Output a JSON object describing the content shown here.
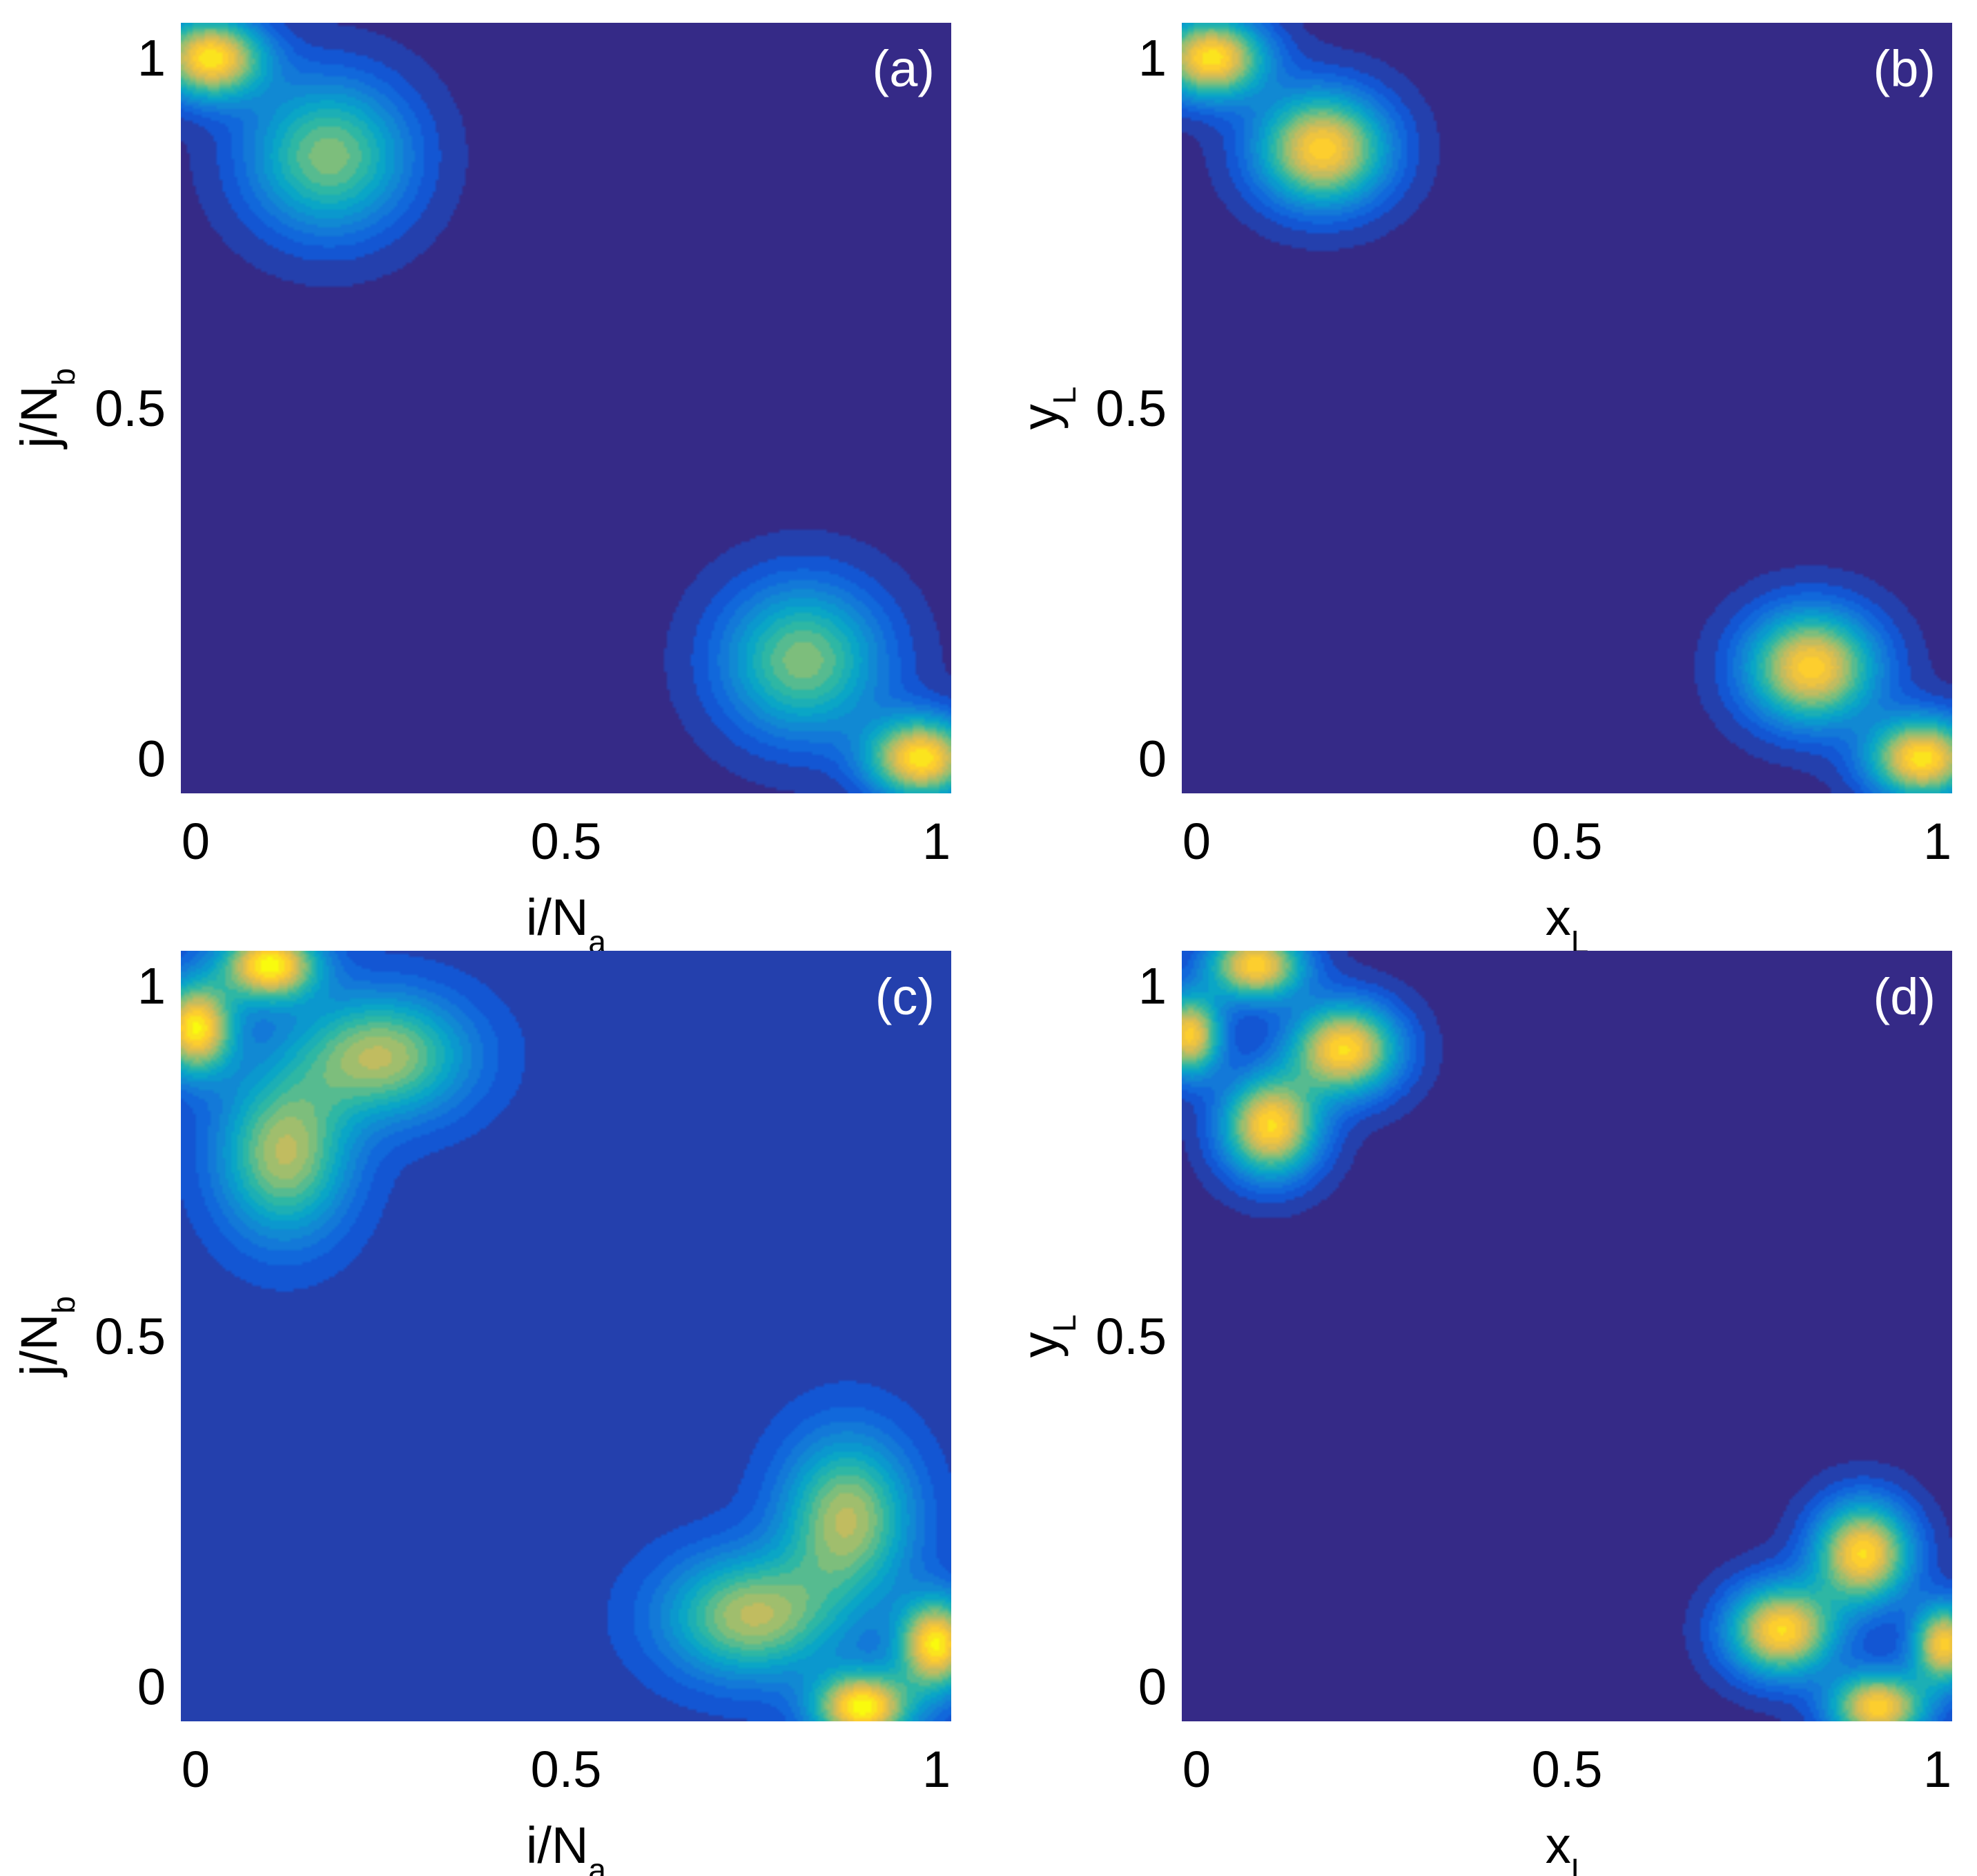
{
  "colors": {
    "background": "#2f2a7c",
    "colormap": [
      "#352a87",
      "#0f5cdd",
      "#1481d6",
      "#06a4ca",
      "#2eb7a4",
      "#87bf77",
      "#d1bb59",
      "#fec832",
      "#f9fb0e"
    ]
  },
  "chart_data": [
    {
      "type": "heatmap",
      "panel_label": "(a)",
      "xlabel": {
        "base": "i/N",
        "sub": "a"
      },
      "ylabel": {
        "base": "j/N",
        "sub": "b"
      },
      "xlim": [
        -0.02,
        1.02
      ],
      "ylim": [
        -0.05,
        1.05
      ],
      "xticks": [
        0,
        0.5,
        1
      ],
      "xtick_labels": [
        "0",
        "0.5",
        "1"
      ],
      "yticks": [
        0,
        0.5,
        1
      ],
      "ytick_labels": [
        "0",
        "0.5",
        "1"
      ],
      "grid": false,
      "base_level": 0.0,
      "lobes": [
        {
          "x": 0.02,
          "y": 1.0,
          "sx": 0.05,
          "sy": 0.04,
          "amp": 0.95
        },
        {
          "x": 0.18,
          "y": 0.86,
          "sx": 0.075,
          "sy": 0.075,
          "amp": 0.62
        },
        {
          "x": 0.98,
          "y": 0.0,
          "sx": 0.05,
          "sy": 0.04,
          "amp": 0.95
        },
        {
          "x": 0.82,
          "y": 0.14,
          "sx": 0.075,
          "sy": 0.075,
          "amp": 0.62
        }
      ]
    },
    {
      "type": "heatmap",
      "panel_label": "(b)",
      "xlabel": {
        "base": "x",
        "sub": "L"
      },
      "ylabel": {
        "base": "y",
        "sub": "L"
      },
      "xlim": [
        -0.02,
        1.02
      ],
      "ylim": [
        -0.05,
        1.05
      ],
      "xticks": [
        0,
        0.5,
        1
      ],
      "xtick_labels": [
        "0",
        "0.5",
        "1"
      ],
      "yticks": [
        0,
        0.5,
        1
      ],
      "ytick_labels": [
        "0",
        "0.5",
        "1"
      ],
      "grid": false,
      "base_level": 0.0,
      "lobes": [
        {
          "x": 0.02,
          "y": 1.0,
          "sx": 0.05,
          "sy": 0.04,
          "amp": 0.95
        },
        {
          "x": 0.17,
          "y": 0.87,
          "sx": 0.06,
          "sy": 0.055,
          "amp": 0.9
        },
        {
          "x": 0.98,
          "y": 0.0,
          "sx": 0.05,
          "sy": 0.04,
          "amp": 0.95
        },
        {
          "x": 0.83,
          "y": 0.13,
          "sx": 0.06,
          "sy": 0.055,
          "amp": 0.9
        }
      ]
    },
    {
      "type": "heatmap",
      "panel_label": "(c)",
      "xlabel": {
        "base": "i/N",
        "sub": "a"
      },
      "ylabel": {
        "base": "j/N",
        "sub": "b"
      },
      "xlim": [
        -0.02,
        1.02
      ],
      "ylim": [
        -0.05,
        1.05
      ],
      "xticks": [
        0,
        0.5,
        1
      ],
      "xtick_labels": [
        "0",
        "0.5",
        "1"
      ],
      "yticks": [
        0,
        0.5,
        1
      ],
      "ytick_labels": [
        "0",
        "0.5",
        "1"
      ],
      "grid": false,
      "base_level": 0.05,
      "lobes": [
        {
          "x": 0.1,
          "y": 1.03,
          "sx": 0.045,
          "sy": 0.035,
          "amp": 0.95
        },
        {
          "x": 0.0,
          "y": 0.94,
          "sx": 0.035,
          "sy": 0.045,
          "amp": 0.92
        },
        {
          "x": 0.25,
          "y": 0.9,
          "sx": 0.08,
          "sy": 0.06,
          "amp": 0.65
        },
        {
          "x": 0.12,
          "y": 0.76,
          "sx": 0.06,
          "sy": 0.08,
          "amp": 0.65
        },
        {
          "x": 0.9,
          "y": -0.03,
          "sx": 0.045,
          "sy": 0.035,
          "amp": 0.95
        },
        {
          "x": 1.0,
          "y": 0.06,
          "sx": 0.035,
          "sy": 0.045,
          "amp": 0.92
        },
        {
          "x": 0.75,
          "y": 0.1,
          "sx": 0.08,
          "sy": 0.06,
          "amp": 0.65
        },
        {
          "x": 0.88,
          "y": 0.24,
          "sx": 0.06,
          "sy": 0.08,
          "amp": 0.65
        }
      ]
    },
    {
      "type": "heatmap",
      "panel_label": "(d)",
      "xlabel": {
        "base": "x",
        "sub": "L"
      },
      "ylabel": {
        "base": "y",
        "sub": "L"
      },
      "xlim": [
        -0.02,
        1.02
      ],
      "ylim": [
        -0.05,
        1.05
      ],
      "xticks": [
        0,
        0.5,
        1
      ],
      "xtick_labels": [
        "0",
        "0.5",
        "1"
      ],
      "yticks": [
        0,
        0.5,
        1
      ],
      "ytick_labels": [
        "0",
        "0.5",
        "1"
      ],
      "grid": false,
      "base_level": 0.0,
      "lobes": [
        {
          "x": 0.08,
          "y": 1.03,
          "sx": 0.045,
          "sy": 0.035,
          "amp": 0.9
        },
        {
          "x": -0.01,
          "y": 0.93,
          "sx": 0.03,
          "sy": 0.04,
          "amp": 0.88
        },
        {
          "x": 0.2,
          "y": 0.91,
          "sx": 0.05,
          "sy": 0.045,
          "amp": 0.92
        },
        {
          "x": 0.1,
          "y": 0.8,
          "sx": 0.045,
          "sy": 0.05,
          "amp": 0.92
        },
        {
          "x": 0.92,
          "y": -0.03,
          "sx": 0.045,
          "sy": 0.035,
          "amp": 0.9
        },
        {
          "x": 1.01,
          "y": 0.06,
          "sx": 0.03,
          "sy": 0.04,
          "amp": 0.88
        },
        {
          "x": 0.79,
          "y": 0.08,
          "sx": 0.05,
          "sy": 0.045,
          "amp": 0.92
        },
        {
          "x": 0.9,
          "y": 0.19,
          "sx": 0.045,
          "sy": 0.05,
          "amp": 0.92
        }
      ]
    }
  ]
}
